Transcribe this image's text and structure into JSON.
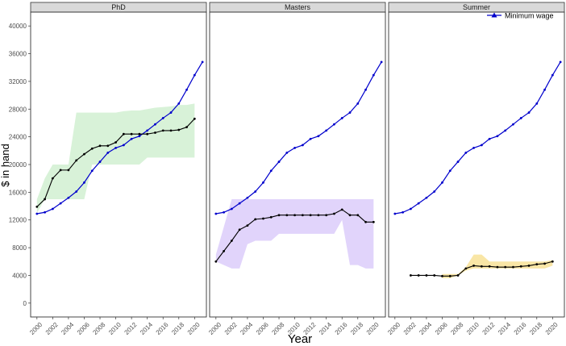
{
  "chart_data": {
    "type": "line",
    "xlabel": "Year",
    "ylabel": "$ in hand",
    "ylim": [
      -2000,
      42000
    ],
    "xlim": [
      1999.2,
      2021.5
    ],
    "y_ticks": [
      0,
      4000,
      8000,
      12000,
      16000,
      20000,
      24000,
      28000,
      32000,
      36000,
      40000
    ],
    "x_ticks": [
      2000,
      2002,
      2004,
      2006,
      2008,
      2010,
      2012,
      2014,
      2016,
      2018,
      2020
    ],
    "y_tick_labels": [
      "0",
      "4000",
      "8000",
      "12000",
      "16000",
      "20000",
      "24000",
      "28000",
      "32000",
      "36000",
      "40000"
    ],
    "x_tick_labels": [
      "2000",
      "2002",
      "2004",
      "2006",
      "2008",
      "2010",
      "2012",
      "2014",
      "2016",
      "2018",
      "2020"
    ],
    "grid": false,
    "legend": {
      "position": "top-right",
      "entries": [
        {
          "name": "Minimum wage",
          "color": "#0000cc"
        }
      ]
    },
    "minimum_wage": {
      "name": "Minimum wage",
      "color": "#0000cc",
      "x": [
        2000,
        2001,
        2002,
        2003,
        2004,
        2005,
        2006,
        2007,
        2008,
        2009,
        2010,
        2011,
        2012,
        2013,
        2014,
        2015,
        2016,
        2017,
        2018,
        2019,
        2020,
        2021
      ],
      "y": [
        12900,
        13100,
        13600,
        14400,
        15200,
        16100,
        17400,
        19100,
        20400,
        21700,
        22400,
        22800,
        23700,
        24100,
        24900,
        25800,
        26700,
        27500,
        28800,
        30800,
        32900,
        34800
      ]
    },
    "panels": [
      {
        "title": "PhD",
        "ribbon_color": "#d8f2d8",
        "line": {
          "x": [
            2000,
            2001,
            2002,
            2003,
            2004,
            2005,
            2006,
            2007,
            2008,
            2009,
            2010,
            2011,
            2012,
            2013,
            2014,
            2015,
            2016,
            2017,
            2018,
            2019,
            2020
          ],
          "y": [
            13900,
            15000,
            18000,
            19200,
            19200,
            20600,
            21500,
            22300,
            22700,
            22700,
            23200,
            24400,
            24400,
            24400,
            24400,
            24600,
            24900,
            24900,
            25000,
            25400,
            26600
          ]
        },
        "ribbon": {
          "x": [
            2000,
            2001,
            2002,
            2003,
            2004,
            2005,
            2006,
            2007,
            2008,
            2009,
            2010,
            2011,
            2012,
            2013,
            2014,
            2015,
            2016,
            2017,
            2018,
            2019,
            2020
          ],
          "low": [
            13000,
            15000,
            15000,
            15000,
            15000,
            15000,
            15000,
            20000,
            20000,
            20000,
            20000,
            20000,
            20000,
            20000,
            21000,
            21000,
            21000,
            21000,
            21000,
            21000,
            21000
          ],
          "high": [
            15000,
            18000,
            20000,
            20000,
            20000,
            27500,
            27500,
            27500,
            27500,
            27500,
            27500,
            27700,
            27800,
            27800,
            28000,
            28200,
            28300,
            28400,
            28600,
            28600,
            28800
          ]
        }
      },
      {
        "title": "Masters",
        "ribbon_color": "#e1d4fb",
        "line": {
          "x": [
            2000,
            2001,
            2002,
            2003,
            2004,
            2005,
            2006,
            2007,
            2008,
            2009,
            2010,
            2011,
            2012,
            2013,
            2014,
            2015,
            2016,
            2017,
            2018,
            2019,
            2020
          ],
          "y": [
            6000,
            7500,
            9000,
            10600,
            11200,
            12100,
            12200,
            12400,
            12700,
            12700,
            12700,
            12700,
            12700,
            12700,
            12700,
            12900,
            13500,
            12700,
            12700,
            11700,
            11700
          ]
        },
        "ribbon": {
          "x": [
            2000,
            2001,
            2002,
            2003,
            2004,
            2005,
            2006,
            2007,
            2008,
            2009,
            2010,
            2011,
            2012,
            2013,
            2014,
            2015,
            2016,
            2017,
            2018,
            2019,
            2020
          ],
          "low": [
            6000,
            5500,
            5000,
            5000,
            8500,
            9000,
            9000,
            9000,
            10000,
            10000,
            10000,
            10000,
            10000,
            10000,
            10000,
            10000,
            12000,
            5500,
            5500,
            5000,
            5000
          ],
          "high": [
            7000,
            11000,
            15000,
            15000,
            15000,
            15000,
            15000,
            15000,
            15000,
            15000,
            15000,
            15000,
            15000,
            15000,
            15000,
            15000,
            15000,
            15000,
            15000,
            15000,
            15000
          ]
        }
      },
      {
        "title": "Summer",
        "ribbon_color": "#f9e6a6",
        "line": {
          "x": [
            2002,
            2003,
            2004,
            2005,
            2006,
            2007,
            2008,
            2009,
            2010,
            2011,
            2012,
            2013,
            2014,
            2015,
            2016,
            2017,
            2018,
            2019,
            2020
          ],
          "y": [
            4000,
            4000,
            4000,
            4000,
            3900,
            3900,
            4000,
            5000,
            5400,
            5300,
            5300,
            5200,
            5200,
            5200,
            5300,
            5400,
            5600,
            5700,
            6000
          ]
        },
        "ribbon": {
          "x": [
            2006,
            2007,
            2008,
            2009,
            2010,
            2011,
            2012,
            2013,
            2014,
            2015,
            2016,
            2017,
            2018,
            2019,
            2020
          ],
          "low": [
            3600,
            3600,
            4000,
            4700,
            5000,
            5000,
            5000,
            5000,
            5000,
            5000,
            5000,
            5000,
            5000,
            5000,
            5400
          ],
          "high": [
            4200,
            4200,
            4200,
            5200,
            7000,
            7000,
            6000,
            6000,
            6000,
            6000,
            6000,
            6000,
            6000,
            6000,
            6200
          ]
        }
      }
    ]
  }
}
